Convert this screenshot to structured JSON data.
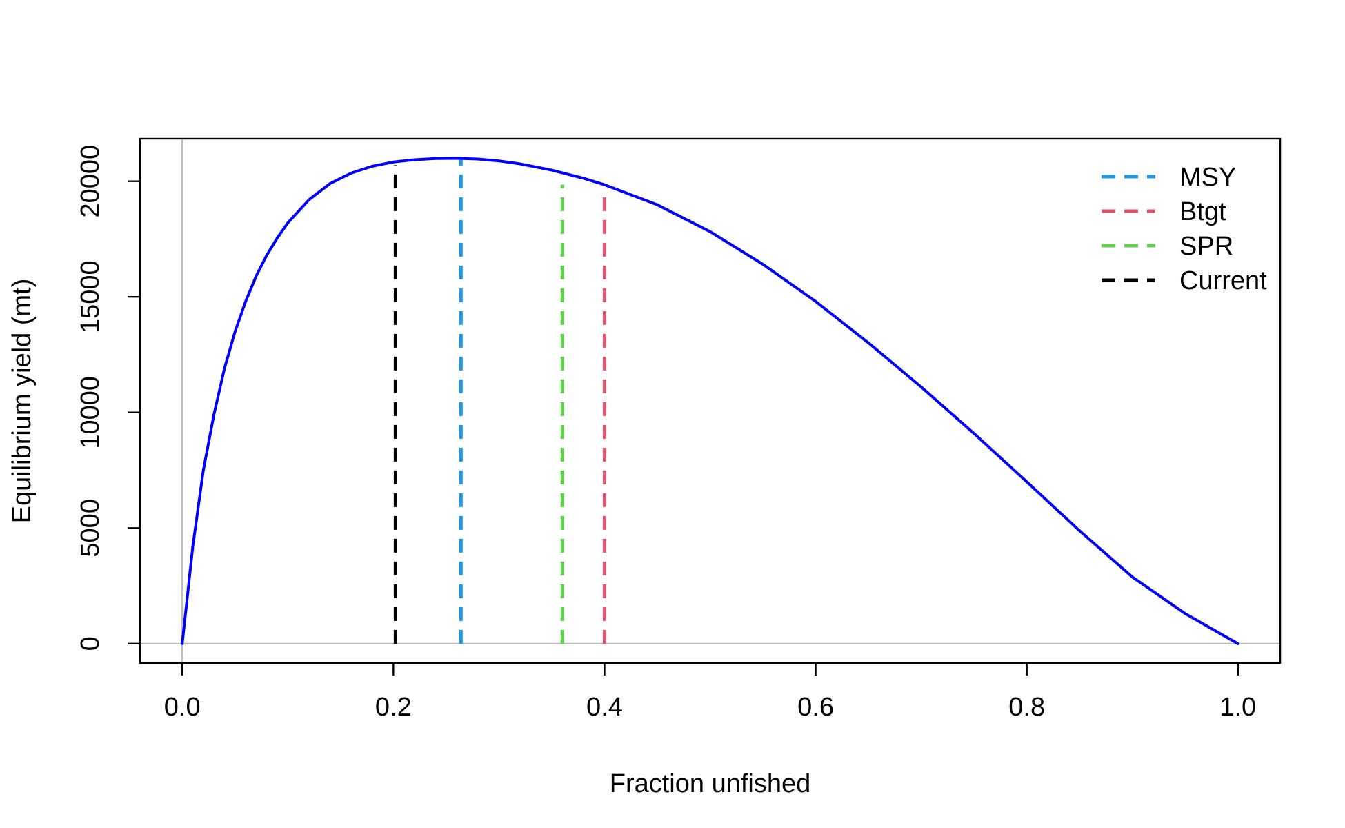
{
  "chart_data": {
    "type": "line",
    "title": "",
    "xlabel": "Fraction unfished",
    "ylabel": "Equilibrium yield (mt)",
    "xlim": [
      -0.04,
      1.04
    ],
    "ylim": [
      -840,
      21840
    ],
    "x_ticks": [
      0.0,
      0.2,
      0.4,
      0.6,
      0.8,
      1.0
    ],
    "x_tick_labels": [
      "0.0",
      "0.2",
      "0.4",
      "0.6",
      "0.8",
      "1.0"
    ],
    "y_ticks": [
      0,
      5000,
      10000,
      15000,
      20000
    ],
    "y_tick_labels": [
      "0",
      "5000",
      "10000",
      "15000",
      "20000"
    ],
    "grid": false,
    "reference_lines": {
      "vertical_x": 0,
      "horizontal_y": 0,
      "color": "#bebebe"
    },
    "series": [
      {
        "type": "line",
        "color": "#0000ff",
        "x": [
          0,
          0.01,
          0.02,
          0.03,
          0.04,
          0.05,
          0.06,
          0.07,
          0.08,
          0.09,
          0.1,
          0.12,
          0.14,
          0.16,
          0.18,
          0.2,
          0.22,
          0.24,
          0.26,
          0.28,
          0.3,
          0.32,
          0.35,
          0.38,
          0.4,
          0.45,
          0.5,
          0.55,
          0.6,
          0.65,
          0.7,
          0.75,
          0.8,
          0.85,
          0.9,
          0.95,
          1.0
        ],
        "values": [
          0,
          4200,
          7500,
          9900,
          11900,
          13500,
          14800,
          15900,
          16800,
          17550,
          18200,
          19200,
          19900,
          20350,
          20650,
          20830,
          20930,
          20980,
          20990,
          20960,
          20880,
          20750,
          20480,
          20130,
          19850,
          18980,
          17820,
          16410,
          14800,
          13010,
          11100,
          9090,
          7000,
          4880,
          2880,
          1300,
          0
        ]
      }
    ],
    "markers": [
      {
        "name": "MSY",
        "x": 0.264,
        "y": 20990,
        "color": "#2297e6"
      },
      {
        "name": "Btgt",
        "x": 0.4,
        "y": 19700,
        "color": "#df536b"
      },
      {
        "name": "SPR",
        "x": 0.36,
        "y": 19850,
        "color": "#61d04f"
      },
      {
        "name": "Current",
        "x": 0.202,
        "y": 20700,
        "color": "#000000"
      }
    ],
    "legend": {
      "position": "top-right",
      "entries": [
        "MSY",
        "Btgt",
        "SPR",
        "Current"
      ]
    }
  }
}
